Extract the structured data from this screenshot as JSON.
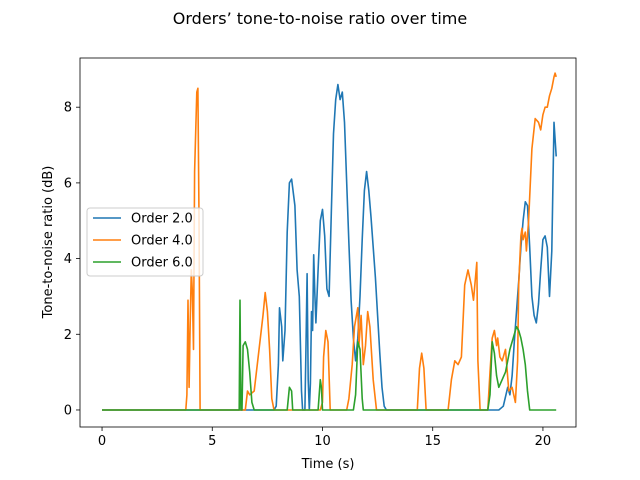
{
  "chart_data": {
    "type": "line",
    "title": "Orders’ tone-to-noise ratio over time",
    "xlabel": "Time (s)",
    "ylabel": "Tone-to-noise ratio (dB)",
    "xlim": [
      -1.0,
      21.5
    ],
    "ylim": [
      -0.45,
      9.3
    ],
    "xticks": [
      0,
      5,
      10,
      15,
      20
    ],
    "yticks": [
      0,
      2,
      4,
      6,
      8
    ],
    "grid": false,
    "legend_position": "center-left",
    "series": [
      {
        "name": "Order 2.0",
        "color": "#1f77b4",
        "points": [
          [
            0,
            0
          ],
          [
            7.8,
            0
          ],
          [
            7.9,
            0.1
          ],
          [
            8.0,
            1.2
          ],
          [
            8.05,
            2.7
          ],
          [
            8.15,
            2.2
          ],
          [
            8.2,
            1.3
          ],
          [
            8.3,
            2.1
          ],
          [
            8.4,
            4.7
          ],
          [
            8.5,
            6.0
          ],
          [
            8.6,
            6.1
          ],
          [
            8.75,
            5.4
          ],
          [
            8.85,
            3.7
          ],
          [
            8.95,
            3.0
          ],
          [
            9.05,
            0.5
          ],
          [
            9.1,
            0.0
          ],
          [
            9.2,
            0.0
          ],
          [
            9.25,
            1.7
          ],
          [
            9.3,
            3.6
          ],
          [
            9.35,
            0.8
          ],
          [
            9.4,
            0.0
          ],
          [
            9.45,
            0.7
          ],
          [
            9.5,
            2.6
          ],
          [
            9.55,
            2.1
          ],
          [
            9.6,
            4.1
          ],
          [
            9.65,
            3.1
          ],
          [
            9.7,
            2.3
          ],
          [
            9.8,
            3.7
          ],
          [
            9.9,
            5.0
          ],
          [
            10.0,
            5.3
          ],
          [
            10.1,
            4.6
          ],
          [
            10.2,
            3.2
          ],
          [
            10.3,
            3.0
          ],
          [
            10.4,
            5.2
          ],
          [
            10.5,
            7.3
          ],
          [
            10.6,
            8.2
          ],
          [
            10.7,
            8.6
          ],
          [
            10.8,
            8.2
          ],
          [
            10.9,
            8.4
          ],
          [
            11.0,
            7.6
          ],
          [
            11.1,
            6.0
          ],
          [
            11.2,
            4.4
          ],
          [
            11.3,
            2.9
          ],
          [
            11.4,
            1.9
          ],
          [
            11.5,
            1.3
          ],
          [
            11.6,
            1.9
          ],
          [
            11.7,
            3.0
          ],
          [
            11.8,
            4.5
          ],
          [
            11.9,
            5.8
          ],
          [
            12.0,
            6.3
          ],
          [
            12.1,
            5.8
          ],
          [
            12.2,
            5.1
          ],
          [
            12.3,
            4.3
          ],
          [
            12.4,
            3.5
          ],
          [
            12.5,
            2.5
          ],
          [
            12.6,
            1.5
          ],
          [
            12.7,
            0.6
          ],
          [
            12.8,
            0.1
          ],
          [
            12.9,
            0.0
          ],
          [
            18.0,
            0.0
          ],
          [
            18.2,
            0.1
          ],
          [
            18.4,
            0.6
          ],
          [
            18.5,
            0.4
          ],
          [
            18.6,
            0.9
          ],
          [
            18.7,
            1.8
          ],
          [
            18.8,
            2.6
          ],
          [
            18.9,
            3.4
          ],
          [
            19.0,
            4.3
          ],
          [
            19.1,
            5.0
          ],
          [
            19.2,
            5.5
          ],
          [
            19.3,
            5.4
          ],
          [
            19.4,
            4.3
          ],
          [
            19.5,
            3.0
          ],
          [
            19.6,
            2.5
          ],
          [
            19.7,
            2.3
          ],
          [
            19.8,
            2.8
          ],
          [
            19.9,
            3.7
          ],
          [
            20.0,
            4.5
          ],
          [
            20.1,
            4.6
          ],
          [
            20.2,
            4.3
          ],
          [
            20.3,
            3.0
          ],
          [
            20.4,
            4.2
          ],
          [
            20.5,
            7.6
          ],
          [
            20.6,
            6.7
          ]
        ]
      },
      {
        "name": "Order 4.0",
        "color": "#ff7f0e",
        "points": [
          [
            0,
            0
          ],
          [
            3.8,
            0
          ],
          [
            3.85,
            0.4
          ],
          [
            3.9,
            2.9
          ],
          [
            3.95,
            0.6
          ],
          [
            4.0,
            2.3
          ],
          [
            4.05,
            3.7
          ],
          [
            4.1,
            3.1
          ],
          [
            4.15,
            1.6
          ],
          [
            4.2,
            6.3
          ],
          [
            4.3,
            8.4
          ],
          [
            4.35,
            8.5
          ],
          [
            4.4,
            5.1
          ],
          [
            4.45,
            0.0
          ],
          [
            6.5,
            0.0
          ],
          [
            6.6,
            0.5
          ],
          [
            6.7,
            0.4
          ],
          [
            6.9,
            0.5
          ],
          [
            7.0,
            1.0
          ],
          [
            7.3,
            2.5
          ],
          [
            7.4,
            3.1
          ],
          [
            7.5,
            2.6
          ],
          [
            7.6,
            1.6
          ],
          [
            7.7,
            0.3
          ],
          [
            7.8,
            0.0
          ],
          [
            9.9,
            0.0
          ],
          [
            10.0,
            0.2
          ],
          [
            10.05,
            1.4
          ],
          [
            10.15,
            2.1
          ],
          [
            10.25,
            1.8
          ],
          [
            10.35,
            0.0
          ],
          [
            11.1,
            0.0
          ],
          [
            11.2,
            0.3
          ],
          [
            11.35,
            1.2
          ],
          [
            11.45,
            2.2
          ],
          [
            11.6,
            2.7
          ],
          [
            11.65,
            1.7
          ],
          [
            11.75,
            2.5
          ],
          [
            11.85,
            1.2
          ],
          [
            11.95,
            1.7
          ],
          [
            12.05,
            2.6
          ],
          [
            12.15,
            2.2
          ],
          [
            12.3,
            0.8
          ],
          [
            12.45,
            0.0
          ],
          [
            14.3,
            0.0
          ],
          [
            14.4,
            1.1
          ],
          [
            14.5,
            1.5
          ],
          [
            14.6,
            1.1
          ],
          [
            14.7,
            0.0
          ],
          [
            15.7,
            0.0
          ],
          [
            15.85,
            0.8
          ],
          [
            16.0,
            1.3
          ],
          [
            16.15,
            1.2
          ],
          [
            16.3,
            1.4
          ],
          [
            16.45,
            3.3
          ],
          [
            16.6,
            3.7
          ],
          [
            16.75,
            3.3
          ],
          [
            16.85,
            2.9
          ],
          [
            17.0,
            3.9
          ],
          [
            17.05,
            1.3
          ],
          [
            17.15,
            0.0
          ],
          [
            17.5,
            0.0
          ],
          [
            17.6,
            1.0
          ],
          [
            17.7,
            1.9
          ],
          [
            17.8,
            2.1
          ],
          [
            17.9,
            1.7
          ],
          [
            17.95,
            1.9
          ],
          [
            18.05,
            1.4
          ],
          [
            18.15,
            1.3
          ],
          [
            18.3,
            1.6
          ],
          [
            18.45,
            0.5
          ],
          [
            18.6,
            0.6
          ],
          [
            18.75,
            0.2
          ],
          [
            18.85,
            1.3
          ],
          [
            18.9,
            3.3
          ],
          [
            19.0,
            4.6
          ],
          [
            19.05,
            4.8
          ],
          [
            19.1,
            4.5
          ],
          [
            19.2,
            4.7
          ],
          [
            19.25,
            4.2
          ],
          [
            19.35,
            5.0
          ],
          [
            19.5,
            6.9
          ],
          [
            19.65,
            7.7
          ],
          [
            19.8,
            7.6
          ],
          [
            19.9,
            7.4
          ],
          [
            20.0,
            7.8
          ],
          [
            20.1,
            8.0
          ],
          [
            20.2,
            8.0
          ],
          [
            20.3,
            8.3
          ],
          [
            20.4,
            8.5
          ],
          [
            20.5,
            8.8
          ],
          [
            20.55,
            8.9
          ],
          [
            20.6,
            8.8
          ]
        ]
      },
      {
        "name": "Order 6.0",
        "color": "#2ca02c",
        "points": [
          [
            0,
            0
          ],
          [
            6.22,
            0
          ],
          [
            6.26,
            2.9
          ],
          [
            6.3,
            0.0
          ],
          [
            6.35,
            0.0
          ],
          [
            6.4,
            1.7
          ],
          [
            6.5,
            1.8
          ],
          [
            6.6,
            1.6
          ],
          [
            6.7,
            1.0
          ],
          [
            6.8,
            0.2
          ],
          [
            6.9,
            0.0
          ],
          [
            8.4,
            0.0
          ],
          [
            8.5,
            0.6
          ],
          [
            8.6,
            0.5
          ],
          [
            8.65,
            0.0
          ],
          [
            9.8,
            0.0
          ],
          [
            9.85,
            0.4
          ],
          [
            9.9,
            0.8
          ],
          [
            9.95,
            0.6
          ],
          [
            10.0,
            0.0
          ],
          [
            11.4,
            0.0
          ],
          [
            11.5,
            0.4
          ],
          [
            11.6,
            1.8
          ],
          [
            11.7,
            1.6
          ],
          [
            11.8,
            0.3
          ],
          [
            11.85,
            0.0
          ],
          [
            17.5,
            0.0
          ],
          [
            17.6,
            0.4
          ],
          [
            17.7,
            1.8
          ],
          [
            17.8,
            1.5
          ],
          [
            17.9,
            0.9
          ],
          [
            18.0,
            0.6
          ],
          [
            18.3,
            1.0
          ],
          [
            18.5,
            1.6
          ],
          [
            18.7,
            2.0
          ],
          [
            18.8,
            2.2
          ],
          [
            18.9,
            2.1
          ],
          [
            19.0,
            1.9
          ],
          [
            19.1,
            1.6
          ],
          [
            19.2,
            1.2
          ],
          [
            19.3,
            0.5
          ],
          [
            19.4,
            0.0
          ],
          [
            20.6,
            0.0
          ]
        ]
      }
    ]
  }
}
